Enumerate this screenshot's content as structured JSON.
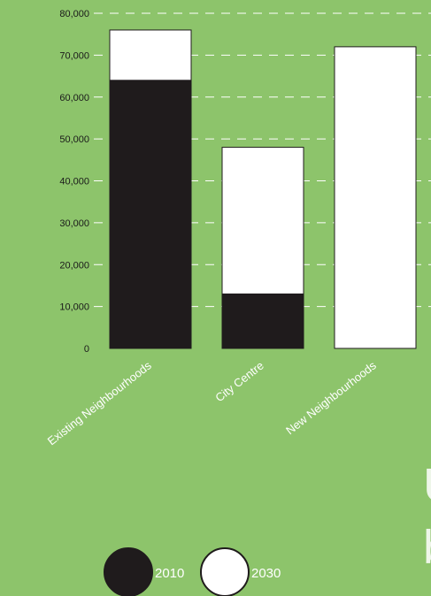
{
  "chart_data": {
    "type": "bar",
    "stacked": true,
    "categories": [
      "Existing Neighbourhoods",
      "City Centre",
      "New Neighbourhoods"
    ],
    "series": [
      {
        "name": "2010",
        "values": [
          64000,
          13000,
          0
        ]
      },
      {
        "name": "2030",
        "values": [
          12000,
          35000,
          72000
        ]
      }
    ],
    "yticks": [
      "0",
      "10,000",
      "20,000",
      "30,000",
      "40,000",
      "50,000",
      "60,000",
      "70,000",
      "80,000"
    ],
    "ylim": [
      0,
      80000
    ],
    "grid": true,
    "legend_position": "bottom",
    "colors": {
      "2010": "#1f1b1c",
      "2030": "#ffffff",
      "background": "#8dc46b",
      "grid": "#ffffff"
    }
  },
  "fragment_text": {
    "line1": "U",
    "line2": "b"
  }
}
